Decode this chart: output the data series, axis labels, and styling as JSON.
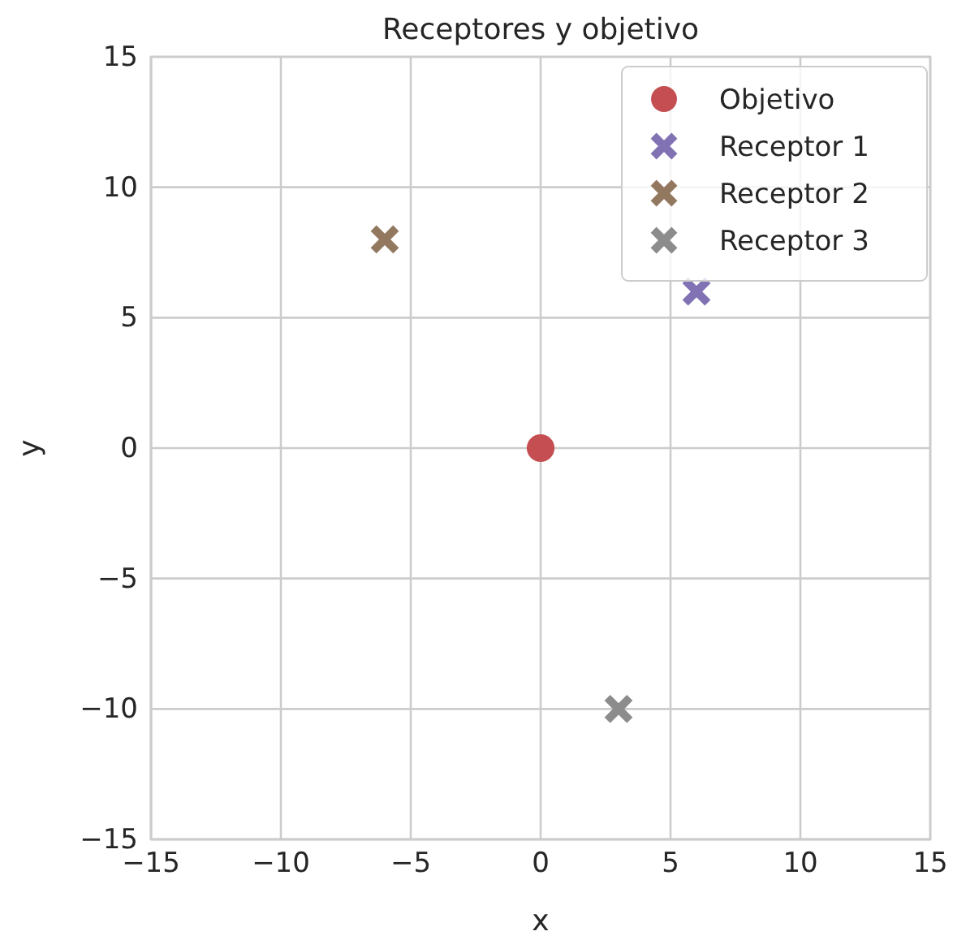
{
  "chart_data": {
    "type": "scatter",
    "title": "Receptores y objetivo",
    "xlabel": "x",
    "ylabel": "y",
    "xlim": [
      -15,
      15
    ],
    "ylim": [
      -15,
      15
    ],
    "xticks": [
      {
        "value": -15,
        "label": "−15"
      },
      {
        "value": -10,
        "label": "−10"
      },
      {
        "value": -5,
        "label": "−5"
      },
      0,
      5,
      10,
      15
    ],
    "yticks": [
      {
        "value": -15,
        "label": "−15"
      },
      {
        "value": -10,
        "label": "−10"
      },
      {
        "value": -5,
        "label": "−5"
      },
      0,
      5,
      10,
      15
    ],
    "grid": true,
    "legend": "top right",
    "series": [
      {
        "name": "Objetivo",
        "color": "#c44e52",
        "marker": "circle",
        "x": [
          0
        ],
        "values": [
          0
        ]
      },
      {
        "name": "Receptor 1",
        "color": "#8172b3",
        "marker": "cross",
        "x": [
          6
        ],
        "values": [
          6
        ]
      },
      {
        "name": "Receptor 2",
        "color": "#937860",
        "marker": "cross",
        "x": [
          -6
        ],
        "values": [
          8
        ]
      },
      {
        "name": "Receptor 3",
        "color": "#8c8c8c",
        "marker": "cross",
        "x": [
          3
        ],
        "values": [
          -10
        ]
      }
    ]
  }
}
